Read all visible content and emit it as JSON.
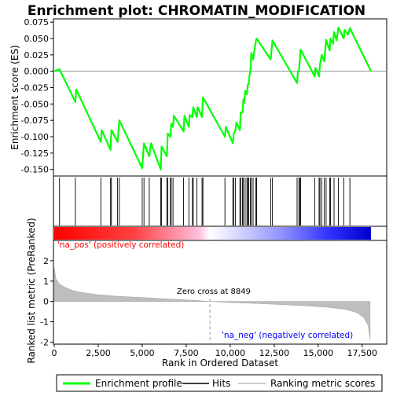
{
  "chart_data": {
    "type": "line",
    "title": "Enrichment plot: CHROMATIN_MODIFICATION",
    "top_panel": {
      "ylabel": "Enrichment score (ES)",
      "ylim": [
        -0.16,
        0.08
      ],
      "yticks": [
        "0.075",
        "0.050",
        "0.025",
        "0.000",
        "-0.025",
        "-0.050",
        "-0.075",
        "-0.100",
        "-0.125",
        "-0.150"
      ],
      "ytick_values": [
        0.075,
        0.05,
        0.025,
        0.0,
        -0.025,
        -0.05,
        -0.075,
        -0.1,
        -0.125,
        -0.15
      ],
      "es_points": [
        [
          0,
          0.0
        ],
        [
          300,
          0.003
        ],
        [
          1200,
          -0.047
        ],
        [
          1250,
          -0.028
        ],
        [
          2650,
          -0.108
        ],
        [
          2700,
          -0.09
        ],
        [
          3200,
          -0.12
        ],
        [
          3250,
          -0.09
        ],
        [
          3600,
          -0.108
        ],
        [
          3700,
          -0.075
        ],
        [
          5000,
          -0.148
        ],
        [
          5100,
          -0.11
        ],
        [
          5400,
          -0.13
        ],
        [
          5500,
          -0.11
        ],
        [
          6050,
          -0.15
        ],
        [
          6100,
          -0.115
        ],
        [
          6400,
          -0.13
        ],
        [
          6450,
          -0.095
        ],
        [
          6600,
          -0.1
        ],
        [
          6650,
          -0.08
        ],
        [
          6750,
          -0.085
        ],
        [
          6800,
          -0.068
        ],
        [
          7350,
          -0.092
        ],
        [
          7400,
          -0.068
        ],
        [
          7650,
          -0.085
        ],
        [
          7700,
          -0.067
        ],
        [
          7850,
          -0.07
        ],
        [
          7900,
          -0.055
        ],
        [
          8100,
          -0.07
        ],
        [
          8150,
          -0.055
        ],
        [
          8400,
          -0.07
        ],
        [
          8450,
          -0.04
        ],
        [
          9700,
          -0.1
        ],
        [
          9750,
          -0.085
        ],
        [
          10150,
          -0.11
        ],
        [
          10200,
          -0.095
        ],
        [
          10300,
          -0.09
        ],
        [
          10350,
          -0.078
        ],
        [
          10550,
          -0.09
        ],
        [
          10600,
          -0.063
        ],
        [
          10700,
          -0.063
        ],
        [
          10750,
          -0.043
        ],
        [
          10800,
          -0.048
        ],
        [
          10850,
          -0.03
        ],
        [
          10950,
          -0.035
        ],
        [
          11000,
          -0.02
        ],
        [
          11050,
          -0.02
        ],
        [
          11100,
          -0.005
        ],
        [
          11150,
          0.0
        ],
        [
          11200,
          0.028
        ],
        [
          11300,
          0.018
        ],
        [
          11450,
          0.045
        ],
        [
          11500,
          0.05
        ],
        [
          12300,
          0.018
        ],
        [
          12400,
          0.047
        ],
        [
          13800,
          -0.018
        ],
        [
          13850,
          0.0
        ],
        [
          13900,
          0.0
        ],
        [
          13950,
          0.015
        ],
        [
          14000,
          0.033
        ],
        [
          14800,
          -0.008
        ],
        [
          14850,
          0.005
        ],
        [
          15050,
          -0.008
        ],
        [
          15100,
          0.01
        ],
        [
          15200,
          0.025
        ],
        [
          15350,
          0.015
        ],
        [
          15450,
          0.048
        ],
        [
          15650,
          0.032
        ],
        [
          15700,
          0.05
        ],
        [
          15850,
          0.042
        ],
        [
          15900,
          0.06
        ],
        [
          16050,
          0.047
        ],
        [
          16150,
          0.067
        ],
        [
          16450,
          0.05
        ],
        [
          16500,
          0.063
        ],
        [
          16700,
          0.056
        ],
        [
          16800,
          0.066
        ],
        [
          18000,
          0.0
        ]
      ],
      "hits": [
        300,
        1200,
        2650,
        3200,
        3250,
        3600,
        3700,
        5000,
        5100,
        5400,
        6050,
        6100,
        6400,
        6450,
        6600,
        6650,
        6750,
        7350,
        7650,
        7850,
        7900,
        8100,
        8400,
        8450,
        9700,
        10150,
        10200,
        10300,
        10550,
        10600,
        10700,
        10750,
        10850,
        10950,
        11000,
        11050,
        11150,
        11200,
        11300,
        11450,
        11500,
        12300,
        12400,
        13800,
        13900,
        13950,
        14000,
        14800,
        15050,
        15100,
        15200,
        15350,
        15450,
        15650,
        15700,
        15900,
        16150,
        16450,
        16800
      ]
    },
    "bottom_panel": {
      "ylabel": "Ranked list metric (PreRanked)",
      "xlabel": "Rank in Ordered Dataset",
      "ylim": [
        -2.1,
        3.0
      ],
      "yticks": [
        "2",
        "1",
        "0",
        "-1",
        "-2"
      ],
      "ytick_values": [
        2,
        1,
        0,
        -1,
        -2
      ],
      "xticks": [
        "0",
        "2,500",
        "5,000",
        "7,500",
        "10,000",
        "12,500",
        "15,000",
        "17,500"
      ],
      "xtick_values": [
        0,
        2500,
        5000,
        7500,
        10000,
        12500,
        15000,
        17500
      ],
      "xlim": [
        0,
        18000
      ],
      "zero_cross": 8849,
      "zero_cross_label": "Zero cross at 8849",
      "pos_label": "'na_pos' (positively correlated)",
      "neg_label": "'na_neg' (negatively correlated)",
      "metric_curve": [
        [
          0,
          1.65
        ],
        [
          100,
          1.1
        ],
        [
          300,
          0.85
        ],
        [
          600,
          0.7
        ],
        [
          1000,
          0.55
        ],
        [
          1500,
          0.45
        ],
        [
          2500,
          0.33
        ],
        [
          3500,
          0.26
        ],
        [
          5000,
          0.19
        ],
        [
          6500,
          0.12
        ],
        [
          8000,
          0.05
        ],
        [
          8849,
          0.0
        ],
        [
          10000,
          -0.05
        ],
        [
          12000,
          -0.12
        ],
        [
          14000,
          -0.2
        ],
        [
          15500,
          -0.28
        ],
        [
          16500,
          -0.38
        ],
        [
          17200,
          -0.55
        ],
        [
          17600,
          -0.8
        ],
        [
          17850,
          -1.2
        ],
        [
          17950,
          -1.9
        ]
      ]
    },
    "legend": {
      "items": [
        {
          "label": "Enrichment profile",
          "color": "#00ff00"
        },
        {
          "label": "Hits",
          "color": "#000000"
        },
        {
          "label": "Ranking metric scores",
          "color": "#bebebe"
        }
      ]
    },
    "colors": {
      "es_line": "#00ff00",
      "metric_fill": "#bebebe",
      "pos_bar": "#ff0000",
      "neg_bar": "#0000ff",
      "pos_label": "#ff0000",
      "neg_label": "#0000ff"
    }
  }
}
